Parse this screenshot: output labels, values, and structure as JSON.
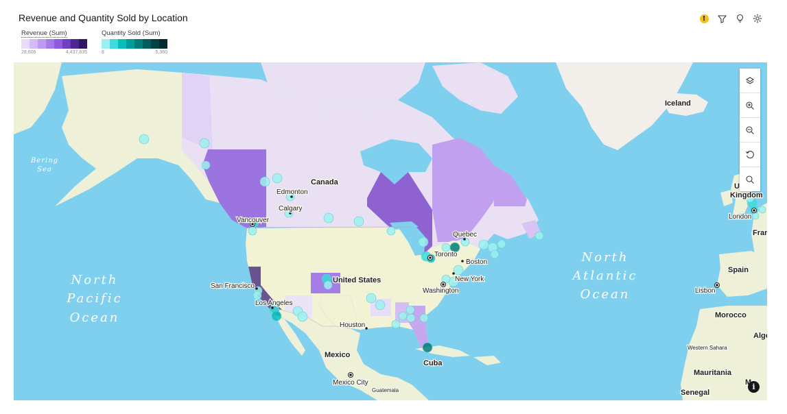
{
  "title": "Revenue and Quantity Sold by Location",
  "toolbar": {
    "icons": [
      "warning-icon",
      "filter-icon",
      "lightbulb-icon",
      "settings-icon"
    ],
    "warning_glyph": "!"
  },
  "legend": {
    "revenue": {
      "label": "Revenue (Sum)",
      "min": "28,606",
      "max": "4,437,835",
      "colors": [
        "#e8dcf8",
        "#d4bdf5",
        "#be9bf0",
        "#a77ae9",
        "#8d5bdb",
        "#6f3fc2",
        "#4e2890",
        "#311862"
      ]
    },
    "quantity": {
      "label": "Quantity Sold (Sum)",
      "min": "8",
      "max": "5,360",
      "colors": [
        "#9ef0f0",
        "#3ddbd9",
        "#08bdba",
        "#009d9a",
        "#007d79",
        "#005d5d",
        "#004144",
        "#022b30"
      ]
    }
  },
  "map_controls": [
    "layers-icon",
    "zoom-in-icon",
    "zoom-out-icon",
    "reset-icon",
    "search-icon"
  ],
  "labels": {
    "canada": "Canada",
    "united_states": "United States",
    "mexico": "Mexico",
    "cuba": "Cuba",
    "iceland": "Iceland",
    "united_kingdom_u": "U",
    "united_kingdom": "Kingdom",
    "london": "London",
    "spain": "Spain",
    "lisbon": "Lisbon",
    "morocco": "Morocco",
    "western_sahara": "Western Sahara",
    "mauritania": "Mauritania",
    "senegal": "Senegal",
    "france_partial": "Fran",
    "algeria_partial": "Alge",
    "mali_partial": "M",
    "edmonton": "Edmonton",
    "calgary": "Calgary",
    "vancouver": "Vancouver",
    "quebec": "Quebec",
    "toronto": "Toronto",
    "boston": "Boston",
    "new_york": "New York",
    "washington": "Washington",
    "san_francisco": "San Francisco",
    "los_angeles": "Los Angeles",
    "houston": "Houston",
    "mexico_city": "Mexico City",
    "guatemala": "Guatemala"
  },
  "oceans": {
    "north_pacific": [
      "North",
      "Pacific",
      "Ocean"
    ],
    "north_atlantic": [
      "North",
      "Atlantic",
      "Ocean"
    ],
    "bering_sea": [
      "Bering",
      "Sea"
    ]
  },
  "colors": {
    "ocean": "#7fd0ef",
    "land": "#eef0d8",
    "land_us": "#f2f3d5",
    "canada_base": "#e9e1f3"
  }
}
